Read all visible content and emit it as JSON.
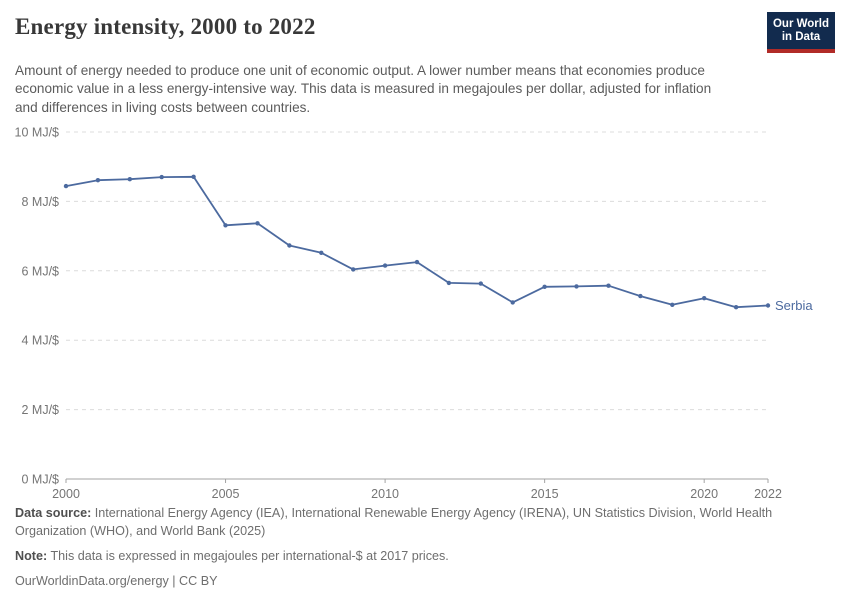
{
  "header": {
    "title": "Energy intensity, 2000 to 2022",
    "subtitle": "Amount of energy needed to produce one unit of economic output. A lower number means that economies produce economic value in a less energy-intensive way. This data is measured in megajoules per dollar, adjusted for inflation and differences in living costs between countries.",
    "logo": {
      "line1": "Our World",
      "line2": "in Data"
    }
  },
  "colors": {
    "series_blue": "#4c6a9f",
    "logo_navy": "#122b4e",
    "logo_red": "#b12b28",
    "grid_gray": "#dcdcdc",
    "axis_gray": "#a3a3a3",
    "tick_text": "#757575",
    "title_text": "#383838",
    "subtitle_text": "#5b5b5b"
  },
  "chart_data": {
    "type": "line",
    "title": "Energy intensity, 2000 to 2022",
    "xlabel": "",
    "ylabel": "",
    "unit": "MJ/$",
    "xlim": [
      2000,
      2022
    ],
    "ylim": [
      0,
      10
    ],
    "grid": "horizontal-dashed",
    "legend_position": "end-of-line-label",
    "xticks": [
      2000,
      2005,
      2010,
      2015,
      2020,
      2022
    ],
    "xtick_labels": [
      "2000",
      "2005",
      "2010",
      "2015",
      "2020",
      "2022"
    ],
    "yticks": [
      0,
      2,
      4,
      6,
      8,
      10
    ],
    "ytick_labels": [
      "0 MJ/$",
      "2 MJ/$",
      "4 MJ/$",
      "6 MJ/$",
      "8 MJ/$",
      "10 MJ/$"
    ],
    "x": [
      2000,
      2001,
      2002,
      2003,
      2004,
      2005,
      2006,
      2007,
      2008,
      2009,
      2010,
      2011,
      2012,
      2013,
      2014,
      2015,
      2016,
      2017,
      2018,
      2019,
      2020,
      2021,
      2022
    ],
    "series": [
      {
        "name": "Serbia",
        "color": "#4c6a9f",
        "values": [
          8.44,
          8.61,
          8.64,
          8.7,
          8.71,
          7.31,
          7.37,
          6.73,
          6.52,
          6.04,
          6.15,
          6.25,
          5.65,
          5.63,
          5.09,
          5.54,
          5.55,
          5.57,
          5.27,
          5.02,
          5.21,
          4.95,
          5.0
        ]
      }
    ]
  },
  "footer": {
    "data_source_label": "Data source:",
    "data_source_text": "International Energy Agency (IEA), International Renewable Energy Agency (IRENA), UN Statistics Division, World Health Organization (WHO), and World Bank (2025)",
    "note_label": "Note:",
    "note_text": "This data is expressed in megajoules per international-$ at 2017 prices.",
    "link_line": "OurWorldinData.org/energy | CC BY"
  }
}
